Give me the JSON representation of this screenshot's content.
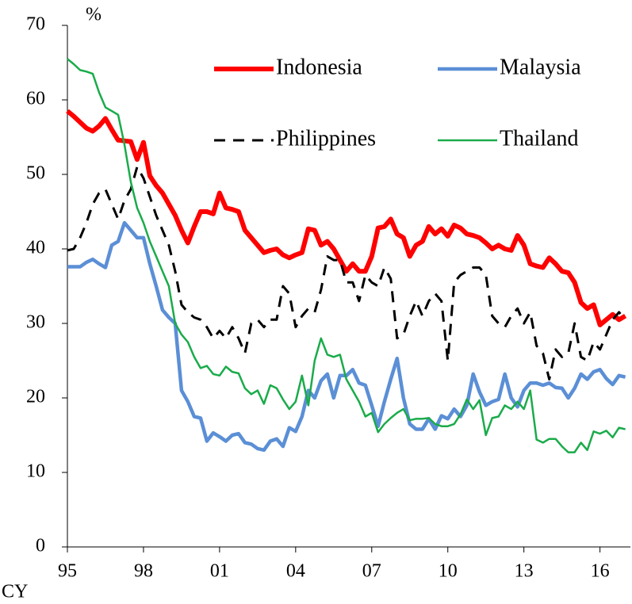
{
  "chart_data": {
    "type": "line",
    "ylabel": "%",
    "xlabel": "CY",
    "x": [
      1995,
      1995.25,
      1995.5,
      1995.75,
      1996,
      1996.25,
      1996.5,
      1996.75,
      1997,
      1997.25,
      1997.5,
      1997.75,
      1998,
      1998.25,
      1998.5,
      1998.75,
      1999,
      1999.25,
      1999.5,
      1999.75,
      2000,
      2000.25,
      2000.5,
      2000.75,
      2001,
      2001.25,
      2001.5,
      2001.75,
      2002,
      2002.25,
      2002.5,
      2002.75,
      2003,
      2003.25,
      2003.5,
      2003.75,
      2004,
      2004.25,
      2004.5,
      2004.75,
      2005,
      2005.25,
      2005.5,
      2005.75,
      2006,
      2006.25,
      2006.5,
      2006.75,
      2007,
      2007.25,
      2007.5,
      2007.75,
      2008,
      2008.25,
      2008.5,
      2008.75,
      2009,
      2009.25,
      2009.5,
      2009.75,
      2010,
      2010.25,
      2010.5,
      2010.75,
      2011,
      2011.25,
      2011.5,
      2011.75,
      2012,
      2012.25,
      2012.5,
      2012.75,
      2013,
      2013.25,
      2013.5,
      2013.75,
      2014,
      2014.25,
      2014.5,
      2014.75,
      2015,
      2015.25,
      2015.5,
      2015.75,
      2016,
      2016.25,
      2016.5,
      2016.75,
      2017
    ],
    "xlim": [
      1995,
      2017.2
    ],
    "xticks": [
      {
        "value": 1995,
        "label": "95"
      },
      {
        "value": 1998,
        "label": "98"
      },
      {
        "value": 2001,
        "label": "01"
      },
      {
        "value": 2004,
        "label": "04"
      },
      {
        "value": 2007,
        "label": "07"
      },
      {
        "value": 2010,
        "label": "10"
      },
      {
        "value": 2013,
        "label": "13"
      },
      {
        "value": 2016,
        "label": "16"
      }
    ],
    "ylim": [
      0,
      70
    ],
    "yticks": [
      0,
      10,
      20,
      30,
      40,
      50,
      60,
      70
    ],
    "legend": "top-right",
    "series": [
      {
        "name": "Indonesia",
        "color": "#ff0000",
        "linestyle": "solid",
        "values": [
          58.5,
          57.8,
          57,
          56.2,
          55.8,
          56.5,
          57.5,
          56,
          54.6,
          54.5,
          54.4,
          52,
          54.3,
          49.8,
          48.5,
          47.5,
          46,
          44.5,
          42.5,
          40.8,
          43,
          45,
          45,
          44.7,
          47.5,
          45.5,
          45.3,
          45,
          42.5,
          41.5,
          40.5,
          39.5,
          39.8,
          40,
          39.2,
          38.8,
          39.2,
          39.5,
          42.7,
          42.5,
          40.5,
          41,
          40,
          38.5,
          37,
          38,
          37,
          37,
          39,
          42.8,
          43,
          44,
          42,
          41.5,
          39,
          40.5,
          41,
          43,
          42,
          42.7,
          41.7,
          43.2,
          42.8,
          42,
          41.8,
          41.5,
          40.8,
          40,
          40.5,
          40,
          39.8,
          41.8,
          40.5,
          38,
          37.7,
          37.5,
          38.8,
          38,
          37,
          36.8,
          35.5,
          32.8,
          32,
          32.5,
          29.8,
          30.5,
          31.2,
          30.5,
          31
        ]
      },
      {
        "name": "Malaysia",
        "color": "#5b8fd6",
        "linestyle": "solid",
        "values": [
          37.6,
          37.6,
          37.6,
          38.2,
          38.6,
          38,
          37.5,
          40.5,
          41,
          43.5,
          42.5,
          41.5,
          41.5,
          38,
          35,
          31.8,
          30.8,
          30,
          21,
          19.5,
          17.5,
          17.3,
          14.2,
          15.3,
          14.8,
          14.2,
          15,
          15.2,
          14,
          13.8,
          13.2,
          13,
          14.2,
          14.5,
          13.5,
          16,
          15.5,
          17.5,
          21,
          20,
          22.3,
          23.2,
          20,
          23,
          23,
          23.8,
          22,
          21.7,
          19,
          16.2,
          19.5,
          22.5,
          25.3,
          20,
          16.5,
          15.8,
          15.8,
          17.2,
          15.8,
          17.6,
          17.2,
          18.5,
          17.5,
          19,
          23.2,
          20.8,
          19,
          19.5,
          19.8,
          23.2,
          20,
          18.8,
          21,
          22,
          22,
          21.7,
          22,
          21.4,
          21.3,
          20,
          21.3,
          23.2,
          22.5,
          23.5,
          23.8,
          22.6,
          21.8,
          23,
          22.8
        ]
      },
      {
        "name": "Philippines",
        "color": "#000000",
        "linestyle": "dashed",
        "values": [
          39.8,
          40,
          41.5,
          43.5,
          46,
          47.5,
          48,
          46,
          44,
          46.5,
          48,
          51,
          49.5,
          47,
          44.5,
          42.5,
          40.5,
          37,
          32.5,
          31.5,
          30.8,
          30.5,
          29.5,
          28,
          29,
          28,
          29.5,
          28,
          26,
          30,
          30.5,
          29.5,
          30.5,
          30.5,
          35,
          34,
          29.5,
          31,
          32,
          31.5,
          34.5,
          39,
          38.5,
          38.5,
          35.5,
          35.5,
          33,
          36.5,
          35.5,
          35,
          37.5,
          36,
          28,
          28.5,
          31,
          33,
          31,
          33,
          34,
          33,
          25,
          35.5,
          36.5,
          37,
          37.5,
          37.5,
          36.5,
          31,
          30,
          29.5,
          31,
          32,
          30,
          31.5,
          27,
          26,
          22.5,
          26.5,
          25.5,
          26,
          30,
          25.5,
          25,
          27.5,
          26.5,
          28.5,
          30.5,
          31.5,
          30.5
        ]
      },
      {
        "name": "Thailand",
        "color": "#1aab4a",
        "linestyle": "solid",
        "values": [
          65.5,
          64.8,
          64,
          63.8,
          63.5,
          61,
          59,
          58.5,
          58,
          54,
          49,
          45.5,
          43.5,
          41,
          39,
          37,
          35,
          30,
          28.5,
          27.5,
          25.5,
          24,
          24.3,
          23.2,
          23,
          24.2,
          23.5,
          23.3,
          21.3,
          20.5,
          21,
          19.2,
          21.7,
          21.3,
          19.8,
          18.5,
          19.5,
          23,
          19,
          25,
          28,
          25.8,
          25.5,
          25.8,
          22.5,
          21,
          19.5,
          17.5,
          18,
          15.4,
          16.5,
          17.3,
          18,
          18.5,
          17,
          17.2,
          17.2,
          17.3,
          16.5,
          16.2,
          16.2,
          16.5,
          17.8,
          19.8,
          18.5,
          19.7,
          15,
          17.3,
          17.5,
          19,
          18.5,
          19.5,
          18.5,
          21,
          14.4,
          14,
          14.5,
          14.5,
          13.5,
          12.7,
          12.7,
          14,
          13,
          15.5,
          15.2,
          15.6,
          14.7,
          16,
          15.8
        ]
      }
    ]
  }
}
